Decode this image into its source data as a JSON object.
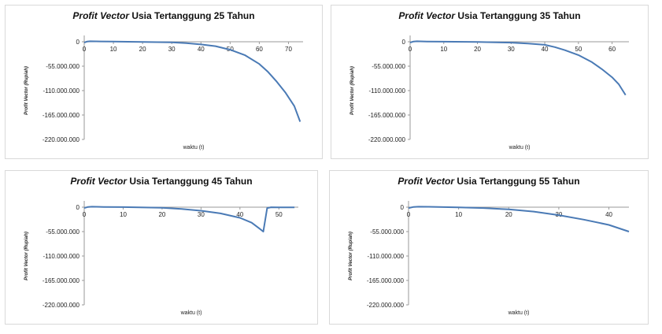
{
  "chart_data": [
    {
      "type": "line",
      "title_italic": "Profit Vector",
      "title_rest": " Usia Tertanggung 25 Tahun",
      "xlabel": "waktu (t)",
      "ylabel": "Profit Vector (Rupiah)",
      "xlim": [
        0,
        75
      ],
      "ylim": [
        -220000000,
        0
      ],
      "x_ticks": [
        0,
        10,
        20,
        30,
        40,
        50,
        60,
        70
      ],
      "y_ticks": [
        0,
        -55000000,
        -110000000,
        -165000000,
        -220000000
      ],
      "y_tick_labels": [
        "0",
        "-55.000.000",
        "-110.000.000",
        "-165.000.000",
        "-220.000.000"
      ],
      "series": [
        {
          "color": "#4a7ab5",
          "x": [
            0,
            1,
            2,
            4,
            10,
            20,
            30,
            35,
            40,
            45,
            50,
            55,
            60,
            63,
            66,
            69,
            72,
            74
          ],
          "y": [
            -2000000,
            500000,
            1000000,
            800000,
            300000,
            -300000,
            -1500000,
            -3000000,
            -6000000,
            -10000000,
            -18000000,
            -30000000,
            -50000000,
            -68000000,
            -90000000,
            -115000000,
            -145000000,
            -180000000
          ]
        }
      ]
    },
    {
      "type": "line",
      "title_italic": "Profit Vector",
      "title_rest": " Usia Tertanggung 35 Tahun",
      "xlabel": "waktu (t)",
      "ylabel": "Profit Vector (Rupiah)",
      "xlim": [
        0,
        65
      ],
      "ylim": [
        -220000000,
        0
      ],
      "x_ticks": [
        0,
        10,
        20,
        30,
        40,
        50,
        60
      ],
      "y_ticks": [
        0,
        -55000000,
        -110000000,
        -165000000,
        -220000000
      ],
      "y_tick_labels": [
        "0",
        "-55.000.000",
        "-110.000.000",
        "-165.000.000",
        "-220.000.000"
      ],
      "series": [
        {
          "color": "#4a7ab5",
          "x": [
            0,
            1,
            2,
            5,
            10,
            20,
            30,
            35,
            40,
            43,
            46,
            50,
            54,
            57,
            60,
            62,
            64
          ],
          "y": [
            -2000000,
            500000,
            1000000,
            600000,
            200000,
            -500000,
            -2000000,
            -4000000,
            -7000000,
            -12000000,
            -19000000,
            -30000000,
            -46000000,
            -62000000,
            -80000000,
            -96000000,
            -120000000
          ]
        }
      ]
    },
    {
      "type": "line",
      "title_italic": "Profit Vector",
      "title_rest": " Usia Tertanggung 45 Tahun",
      "xlabel": "waktu (t)",
      "ylabel": "Profit Vector (Rupiah)",
      "xlim": [
        0,
        55
      ],
      "ylim": [
        -220000000,
        0
      ],
      "x_ticks": [
        0,
        10,
        20,
        30,
        40,
        50
      ],
      "y_ticks": [
        0,
        -55000000,
        -110000000,
        -165000000,
        -220000000
      ],
      "y_tick_labels": [
        "0",
        "-55.000.000",
        "-110.000.000",
        "-165.000.000",
        "-220.000.000"
      ],
      "series": [
        {
          "color": "#4a7ab5",
          "x": [
            0,
            1,
            2,
            5,
            10,
            20,
            25,
            30,
            35,
            40,
            43,
            45,
            46,
            47,
            48,
            50,
            52,
            54
          ],
          "y": [
            -2000000,
            500000,
            1000000,
            600000,
            100000,
            -1500000,
            -4000000,
            -8000000,
            -14000000,
            -24000000,
            -35000000,
            -48000000,
            -55000000,
            -2000000,
            -200000,
            -500000,
            -500000,
            -500000
          ]
        }
      ]
    },
    {
      "type": "line",
      "title_italic": "Profit Vector",
      "title_rest": " Usia Tertanggung 55 Tahun",
      "xlabel": "waktu (t)",
      "ylabel": "Profit Vector (Rupiah)",
      "xlim": [
        0,
        44
      ],
      "ylim": [
        -220000000,
        0
      ],
      "x_ticks": [
        0,
        10,
        20,
        30,
        40
      ],
      "y_ticks": [
        0,
        -55000000,
        -110000000,
        -165000000,
        -220000000
      ],
      "y_tick_labels": [
        "0",
        "-55.000.000",
        "-110.000.000",
        "-165.000.000",
        "-220.000.000"
      ],
      "series": [
        {
          "color": "#4a7ab5",
          "x": [
            0,
            1,
            2,
            4,
            10,
            15,
            20,
            25,
            30,
            35,
            40,
            44
          ],
          "y": [
            -2000000,
            500000,
            1000000,
            800000,
            -500000,
            -2000000,
            -5000000,
            -10000000,
            -18000000,
            -28000000,
            -40000000,
            -55000000
          ]
        }
      ]
    }
  ]
}
